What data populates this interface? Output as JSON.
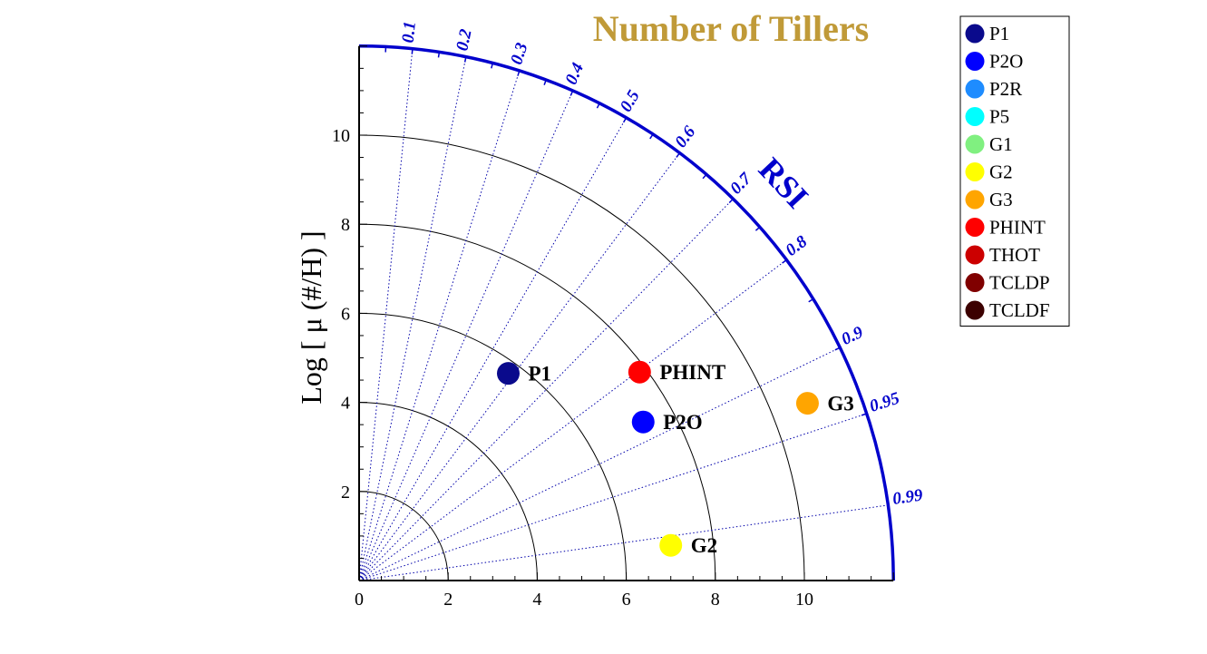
{
  "chart_data": {
    "type": "scatter",
    "title": "Number of Tillers",
    "ylabel": "Log [ μ (#/H) ]",
    "arc_label": "RSI",
    "xlim": [
      0,
      12
    ],
    "ylim": [
      0,
      12
    ],
    "axis_ticks": [
      "0",
      "2",
      "4",
      "6",
      "8",
      "10"
    ],
    "radial_arcs": [
      2,
      4,
      6,
      8,
      10
    ],
    "correlation_ticks": [
      "0.1",
      "0.2",
      "0.3",
      "0.4",
      "0.5",
      "0.6",
      "0.7",
      "0.8",
      "0.9",
      "0.95",
      "0.99"
    ],
    "points": [
      {
        "label": "P1",
        "x": 3.35,
        "y": 4.65,
        "color": "#0a0a8c"
      },
      {
        "label": "PHINT",
        "x": 6.3,
        "y": 4.68,
        "color": "#ff0000"
      },
      {
        "label": "P2O",
        "x": 6.38,
        "y": 3.56,
        "color": "#0000ff"
      },
      {
        "label": "G3",
        "x": 10.07,
        "y": 3.98,
        "color": "#ffa500"
      },
      {
        "label": "G2",
        "x": 7.0,
        "y": 0.79,
        "color": "#ffff00"
      }
    ],
    "legend": [
      {
        "label": "P1",
        "color": "#0a0a8c"
      },
      {
        "label": "P2O",
        "color": "#0000ff"
      },
      {
        "label": "P2R",
        "color": "#1e8cff"
      },
      {
        "label": "P5",
        "color": "#00ffff"
      },
      {
        "label": "G1",
        "color": "#80f080"
      },
      {
        "label": "G2",
        "color": "#ffff00"
      },
      {
        "label": "G3",
        "color": "#ffa500"
      },
      {
        "label": "PHINT",
        "color": "#ff0000"
      },
      {
        "label": "THOT",
        "color": "#cc0000"
      },
      {
        "label": "TCLDP",
        "color": "#800000"
      },
      {
        "label": "TCLDF",
        "color": "#3c0000"
      }
    ],
    "colors": {
      "title": "#c09a38",
      "arc": "#0000cc",
      "corr_lines": "#0000aa"
    }
  }
}
